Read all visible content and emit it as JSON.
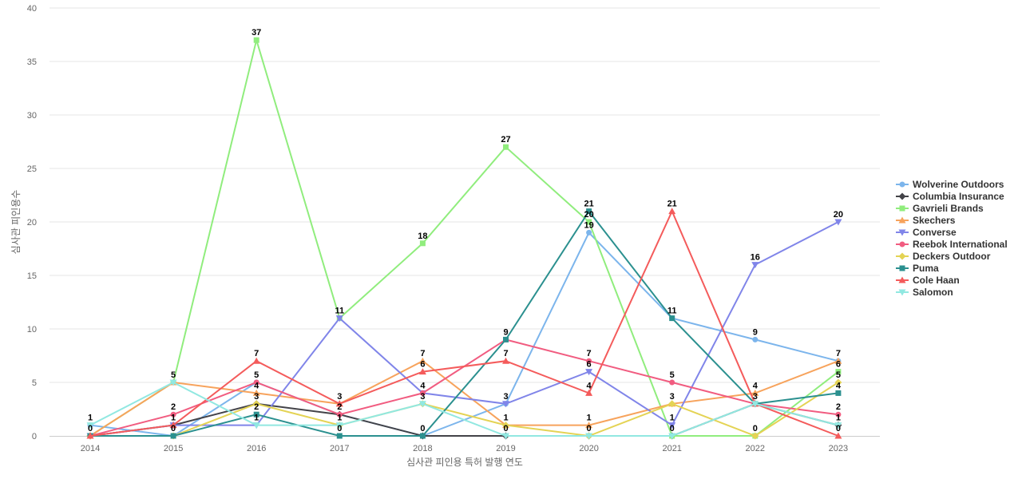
{
  "chart_data": {
    "type": "line",
    "title": "",
    "xlabel": "심사관 피인용 특허 발행 연도",
    "ylabel": "심사관 피인용수",
    "x": [
      "2014",
      "2015",
      "2016",
      "2017",
      "2018",
      "2019",
      "2020",
      "2021",
      "2022",
      "2023"
    ],
    "ylim": [
      0,
      40
    ],
    "yticks": [
      0,
      5,
      10,
      15,
      20,
      25,
      30,
      35,
      40
    ],
    "grid": true,
    "legend_position": "right",
    "series": [
      {
        "name": "Wolverine Outdoors",
        "color": "#7cb5ec",
        "marker": "circle",
        "values": [
          1,
          0,
          5,
          2,
          0,
          3,
          19,
          11,
          9,
          7
        ]
      },
      {
        "name": "Columbia Insurance",
        "color": "#434348",
        "marker": "diamond",
        "values": [
          0,
          1,
          3,
          2,
          0,
          0,
          0,
          0,
          3,
          1
        ]
      },
      {
        "name": "Gavrieli Brands",
        "color": "#90ed7d",
        "marker": "square",
        "values": [
          0,
          5,
          37,
          11,
          18,
          27,
          20,
          0,
          0,
          6
        ]
      },
      {
        "name": "Skechers",
        "color": "#f7a35c",
        "marker": "triangle",
        "values": [
          0,
          5,
          4,
          3,
          7,
          1,
          1,
          3,
          4,
          7
        ]
      },
      {
        "name": "Converse",
        "color": "#8085e9",
        "marker": "triangle-down",
        "values": [
          0,
          1,
          1,
          11,
          4,
          3,
          6,
          1,
          16,
          20
        ]
      },
      {
        "name": "Reebok International",
        "color": "#f15c80",
        "marker": "circle",
        "values": [
          0,
          2,
          5,
          2,
          4,
          9,
          7,
          5,
          3,
          2
        ]
      },
      {
        "name": "Deckers Outdoor",
        "color": "#e4d354",
        "marker": "diamond",
        "values": [
          0,
          0,
          3,
          1,
          3,
          1,
          0,
          3,
          0,
          5
        ]
      },
      {
        "name": "Puma",
        "color": "#2b908f",
        "marker": "square",
        "values": [
          0,
          0,
          2,
          0,
          0,
          9,
          21,
          11,
          3,
          4
        ]
      },
      {
        "name": "Cole Haan",
        "color": "#f45b5b",
        "marker": "triangle",
        "values": [
          0,
          1,
          7,
          3,
          6,
          7,
          4,
          21,
          3,
          0
        ]
      },
      {
        "name": "Salomon",
        "color": "#91e8e1",
        "marker": "triangle-down",
        "values": [
          1,
          5,
          1,
          1,
          3,
          0,
          0,
          0,
          3,
          1
        ]
      }
    ],
    "data_labels": [
      {
        "x": "2014",
        "text": "1",
        "value": 1
      },
      {
        "x": "2014",
        "text": "0",
        "value": 0
      },
      {
        "x": "2015",
        "text": "5",
        "value": 5
      },
      {
        "x": "2015",
        "text": "2",
        "value": 2
      },
      {
        "x": "2015",
        "text": "1",
        "value": 1
      },
      {
        "x": "2015",
        "text": "0",
        "value": 0
      },
      {
        "x": "2016",
        "text": "37",
        "value": 37
      },
      {
        "x": "2016",
        "text": "7",
        "value": 7
      },
      {
        "x": "2016",
        "text": "5",
        "value": 5
      },
      {
        "x": "2016",
        "text": "4",
        "value": 4
      },
      {
        "x": "2016",
        "text": "3",
        "value": 3
      },
      {
        "x": "2016",
        "text": "2",
        "value": 2
      },
      {
        "x": "2016",
        "text": "1",
        "value": 1
      },
      {
        "x": "2017",
        "text": "11",
        "value": 11
      },
      {
        "x": "2017",
        "text": "3",
        "value": 3
      },
      {
        "x": "2017",
        "text": "2",
        "value": 2
      },
      {
        "x": "2017",
        "text": "1",
        "value": 1
      },
      {
        "x": "2017",
        "text": "0",
        "value": 0
      },
      {
        "x": "2018",
        "text": "18",
        "value": 18
      },
      {
        "x": "2018",
        "text": "7",
        "value": 7
      },
      {
        "x": "2018",
        "text": "6",
        "value": 6
      },
      {
        "x": "2018",
        "text": "4",
        "value": 4
      },
      {
        "x": "2018",
        "text": "3",
        "value": 3
      },
      {
        "x": "2018",
        "text": "0",
        "value": 0
      },
      {
        "x": "2019",
        "text": "27",
        "value": 27
      },
      {
        "x": "2019",
        "text": "9",
        "value": 9
      },
      {
        "x": "2019",
        "text": "7",
        "value": 7
      },
      {
        "x": "2019",
        "text": "3",
        "value": 3
      },
      {
        "x": "2019",
        "text": "1",
        "value": 1
      },
      {
        "x": "2019",
        "text": "0",
        "value": 0
      },
      {
        "x": "2020",
        "text": "21",
        "value": 21
      },
      {
        "x": "2020",
        "text": "20",
        "value": 20
      },
      {
        "x": "2020",
        "text": "19",
        "value": 19
      },
      {
        "x": "2020",
        "text": "7",
        "value": 7
      },
      {
        "x": "2020",
        "text": "6",
        "value": 6
      },
      {
        "x": "2020",
        "text": "4",
        "value": 4
      },
      {
        "x": "2020",
        "text": "1",
        "value": 1
      },
      {
        "x": "2020",
        "text": "0",
        "value": 0
      },
      {
        "x": "2021",
        "text": "21",
        "value": 21
      },
      {
        "x": "2021",
        "text": "11",
        "value": 11
      },
      {
        "x": "2021",
        "text": "5",
        "value": 5
      },
      {
        "x": "2021",
        "text": "3",
        "value": 3
      },
      {
        "x": "2021",
        "text": "1",
        "value": 1
      },
      {
        "x": "2021",
        "text": "0",
        "value": 0
      },
      {
        "x": "2022",
        "text": "16",
        "value": 16
      },
      {
        "x": "2022",
        "text": "9",
        "value": 9
      },
      {
        "x": "2022",
        "text": "4",
        "value": 4
      },
      {
        "x": "2022",
        "text": "3",
        "value": 3
      },
      {
        "x": "2022",
        "text": "0",
        "value": 0
      },
      {
        "x": "2023",
        "text": "20",
        "value": 20
      },
      {
        "x": "2023",
        "text": "7",
        "value": 7
      },
      {
        "x": "2023",
        "text": "6",
        "value": 6
      },
      {
        "x": "2023",
        "text": "5",
        "value": 5
      },
      {
        "x": "2023",
        "text": "4",
        "value": 4
      },
      {
        "x": "2023",
        "text": "2",
        "value": 2
      },
      {
        "x": "2023",
        "text": "1",
        "value": 1
      },
      {
        "x": "2023",
        "text": "0",
        "value": 0
      }
    ]
  }
}
